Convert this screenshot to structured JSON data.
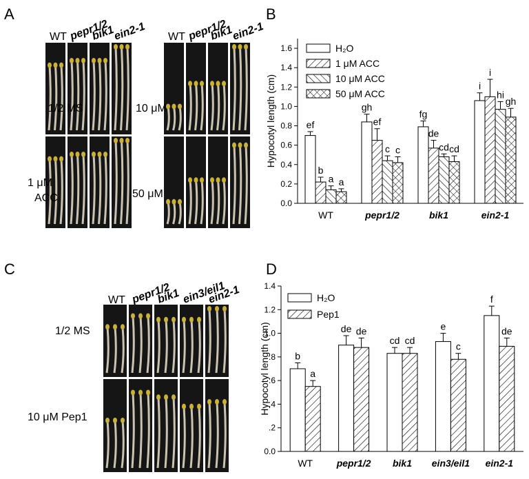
{
  "photo_panels": [
    {
      "letter": "A",
      "columns": [
        "WT",
        "pepr1/2",
        "bik1",
        "ein2-1"
      ],
      "conditions": [
        "1/2 MS",
        "1 μM",
        "ACC",
        "10 μM",
        "50 μM"
      ]
    },
    {
      "letter": "C",
      "columns": [
        "WT",
        "pepr1/2",
        "bik1",
        "ein3/eil1",
        "ein2-1"
      ],
      "conditions": [
        "1/2 MS",
        "10 μM Pep1"
      ]
    }
  ],
  "chart_data": [
    {
      "type": "bar",
      "panel": "B",
      "y_label": "Hypocotyl length (cm)",
      "categories": [
        "WT",
        "pepr1/2",
        "bik1",
        "ein2-1"
      ],
      "series": [
        {
          "name": "H₂O",
          "color": "#ffffff",
          "pattern": "none",
          "values": [
            0.7,
            0.84,
            0.79,
            1.06
          ],
          "errors": [
            0.04,
            0.08,
            0.06,
            0.08
          ],
          "letters": [
            "ef",
            "gh",
            "fg",
            "i"
          ]
        },
        {
          "name": "1 μM ACC",
          "color": "#ffffff",
          "pattern": "diag",
          "values": [
            0.22,
            0.65,
            0.57,
            1.1
          ],
          "errors": [
            0.05,
            0.12,
            0.08,
            0.18
          ],
          "letters": [
            "b",
            "ef",
            "de",
            "i"
          ]
        },
        {
          "name": "10 μM ACC",
          "color": "#ffffff",
          "pattern": "back",
          "values": [
            0.14,
            0.44,
            0.48,
            0.97
          ],
          "errors": [
            0.04,
            0.05,
            0.03,
            0.08
          ],
          "letters": [
            "a",
            "c",
            "cd",
            "hi"
          ]
        },
        {
          "name": "50 μM ACC",
          "color": "#ffffff",
          "pattern": "cross",
          "values": [
            0.12,
            0.42,
            0.43,
            0.89
          ],
          "errors": [
            0.03,
            0.06,
            0.06,
            0.09
          ],
          "letters": [
            "a",
            "c",
            "cd",
            "gh"
          ]
        }
      ],
      "ylim": [
        0,
        1.7
      ],
      "yticks": [
        {
          "value": 0,
          "label": "0.0"
        },
        0.2,
        0.4,
        0.6,
        0.8,
        {
          "value": 1,
          "label": "1.0"
        },
        1.2,
        1.4,
        1.6
      ],
      "legend": "top-left"
    },
    {
      "type": "bar",
      "panel": "D",
      "y_label": "Hypocotyl length (cm)",
      "categories": [
        "WT",
        "pepr1/2",
        "bik1",
        "ein3/eil1",
        "ein2-1"
      ],
      "series": [
        {
          "name": "H₂O",
          "color": "#ffffff",
          "pattern": "none",
          "values": [
            0.7,
            0.9,
            0.83,
            0.93,
            1.15
          ],
          "errors": [
            0.05,
            0.08,
            0.05,
            0.07,
            0.08
          ],
          "letters": [
            "b",
            "de",
            "cd",
            "e",
            "f"
          ]
        },
        {
          "name": "Pep1",
          "color": "#ffffff",
          "pattern": "diag",
          "values": [
            0.55,
            0.88,
            0.83,
            0.78,
            0.89
          ],
          "errors": [
            0.05,
            0.08,
            0.05,
            0.05,
            0.07
          ],
          "letters": [
            "a",
            "de",
            "cd",
            "c",
            "de"
          ]
        }
      ],
      "ylim": [
        0,
        1.4
      ],
      "yticks": [
        {
          "value": 0,
          "label": "0.0"
        },
        {
          "value": 0.2,
          "label": ".2"
        },
        {
          "value": 0.4,
          "label": ".4"
        },
        {
          "value": 0.6,
          "label": ".6"
        },
        {
          "value": 0.8,
          "label": ".8"
        },
        {
          "value": 1,
          "label": "1.0"
        },
        1.2,
        1.4
      ],
      "legend": "top-left"
    }
  ]
}
